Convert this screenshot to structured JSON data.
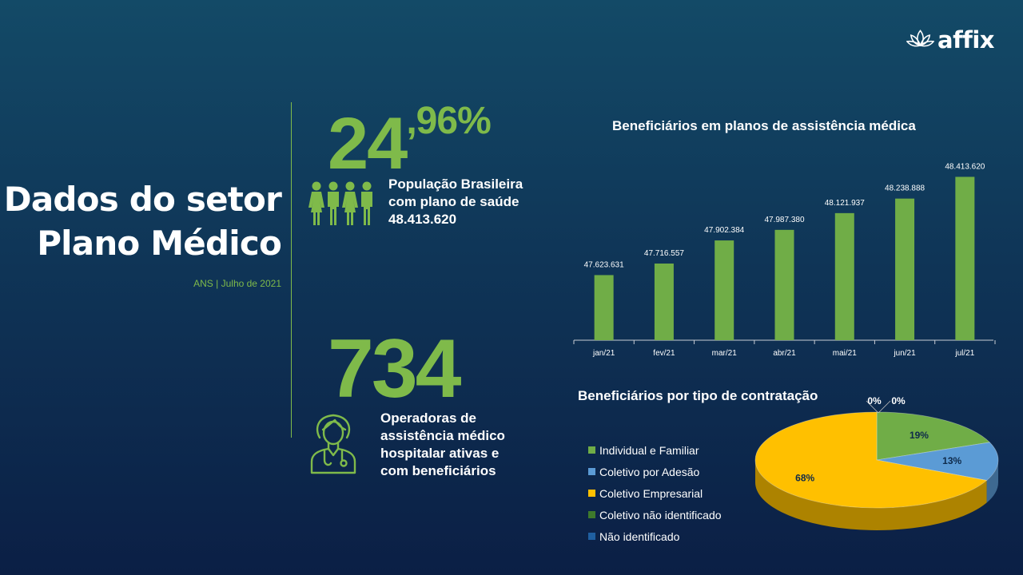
{
  "brand": {
    "name": "affix"
  },
  "title": {
    "line1": "Dados do setor",
    "line2": "Plano Médico"
  },
  "source": "ANS | Julho de 2021",
  "stat_population": {
    "value_int": "24",
    "value_dec": ",96%",
    "line1": "População Brasileira",
    "line2": "com plano de saúde",
    "line3": "48.413.620",
    "icon": "people-group-icon"
  },
  "stat_operators": {
    "value": "734",
    "line1": "Operadoras de",
    "line2": "assistência médico",
    "line3": "hospitalar ativas e",
    "line4": "com beneficiários",
    "icon": "doctor-icon"
  },
  "colors": {
    "green": "#7fba4a",
    "bar": "#70ad47",
    "blue": "#5b9bd5",
    "yellow": "#ffc000"
  },
  "chart_data": [
    {
      "type": "bar",
      "title": "Beneficiários em planos de assistência médica",
      "categories": [
        "jan/21",
        "fev/21",
        "mar/21",
        "abr/21",
        "mai/21",
        "jun/21",
        "jul/21"
      ],
      "values": [
        47623631,
        47716557,
        47902384,
        47987380,
        48121937,
        48238888,
        48413620
      ],
      "value_labels": [
        "47.623.631",
        "47.716.557",
        "47.902.384",
        "47.987.380",
        "48.121.937",
        "48.238.888",
        "48.413.620"
      ],
      "ylim": [
        47100000,
        48500000
      ],
      "grid": false
    },
    {
      "type": "pie",
      "title": "Beneficiários por tipo de contratação",
      "legend_position": "left",
      "slices": [
        {
          "label": "Individual e Familiar",
          "value": 19,
          "display": "19%",
          "color": "#70ad47"
        },
        {
          "label": "Coletivo por Adesão",
          "value": 13,
          "display": "13%",
          "color": "#5b9bd5"
        },
        {
          "label": "Coletivo Empresarial",
          "value": 68,
          "display": "68%",
          "color": "#ffc000"
        },
        {
          "label": "Coletivo não identificado",
          "value": 0,
          "display": "0%",
          "color": "#3e7a2c"
        },
        {
          "label": "Não identificado",
          "value": 0,
          "display": "0%",
          "color": "#1f5fa0"
        }
      ]
    }
  ]
}
